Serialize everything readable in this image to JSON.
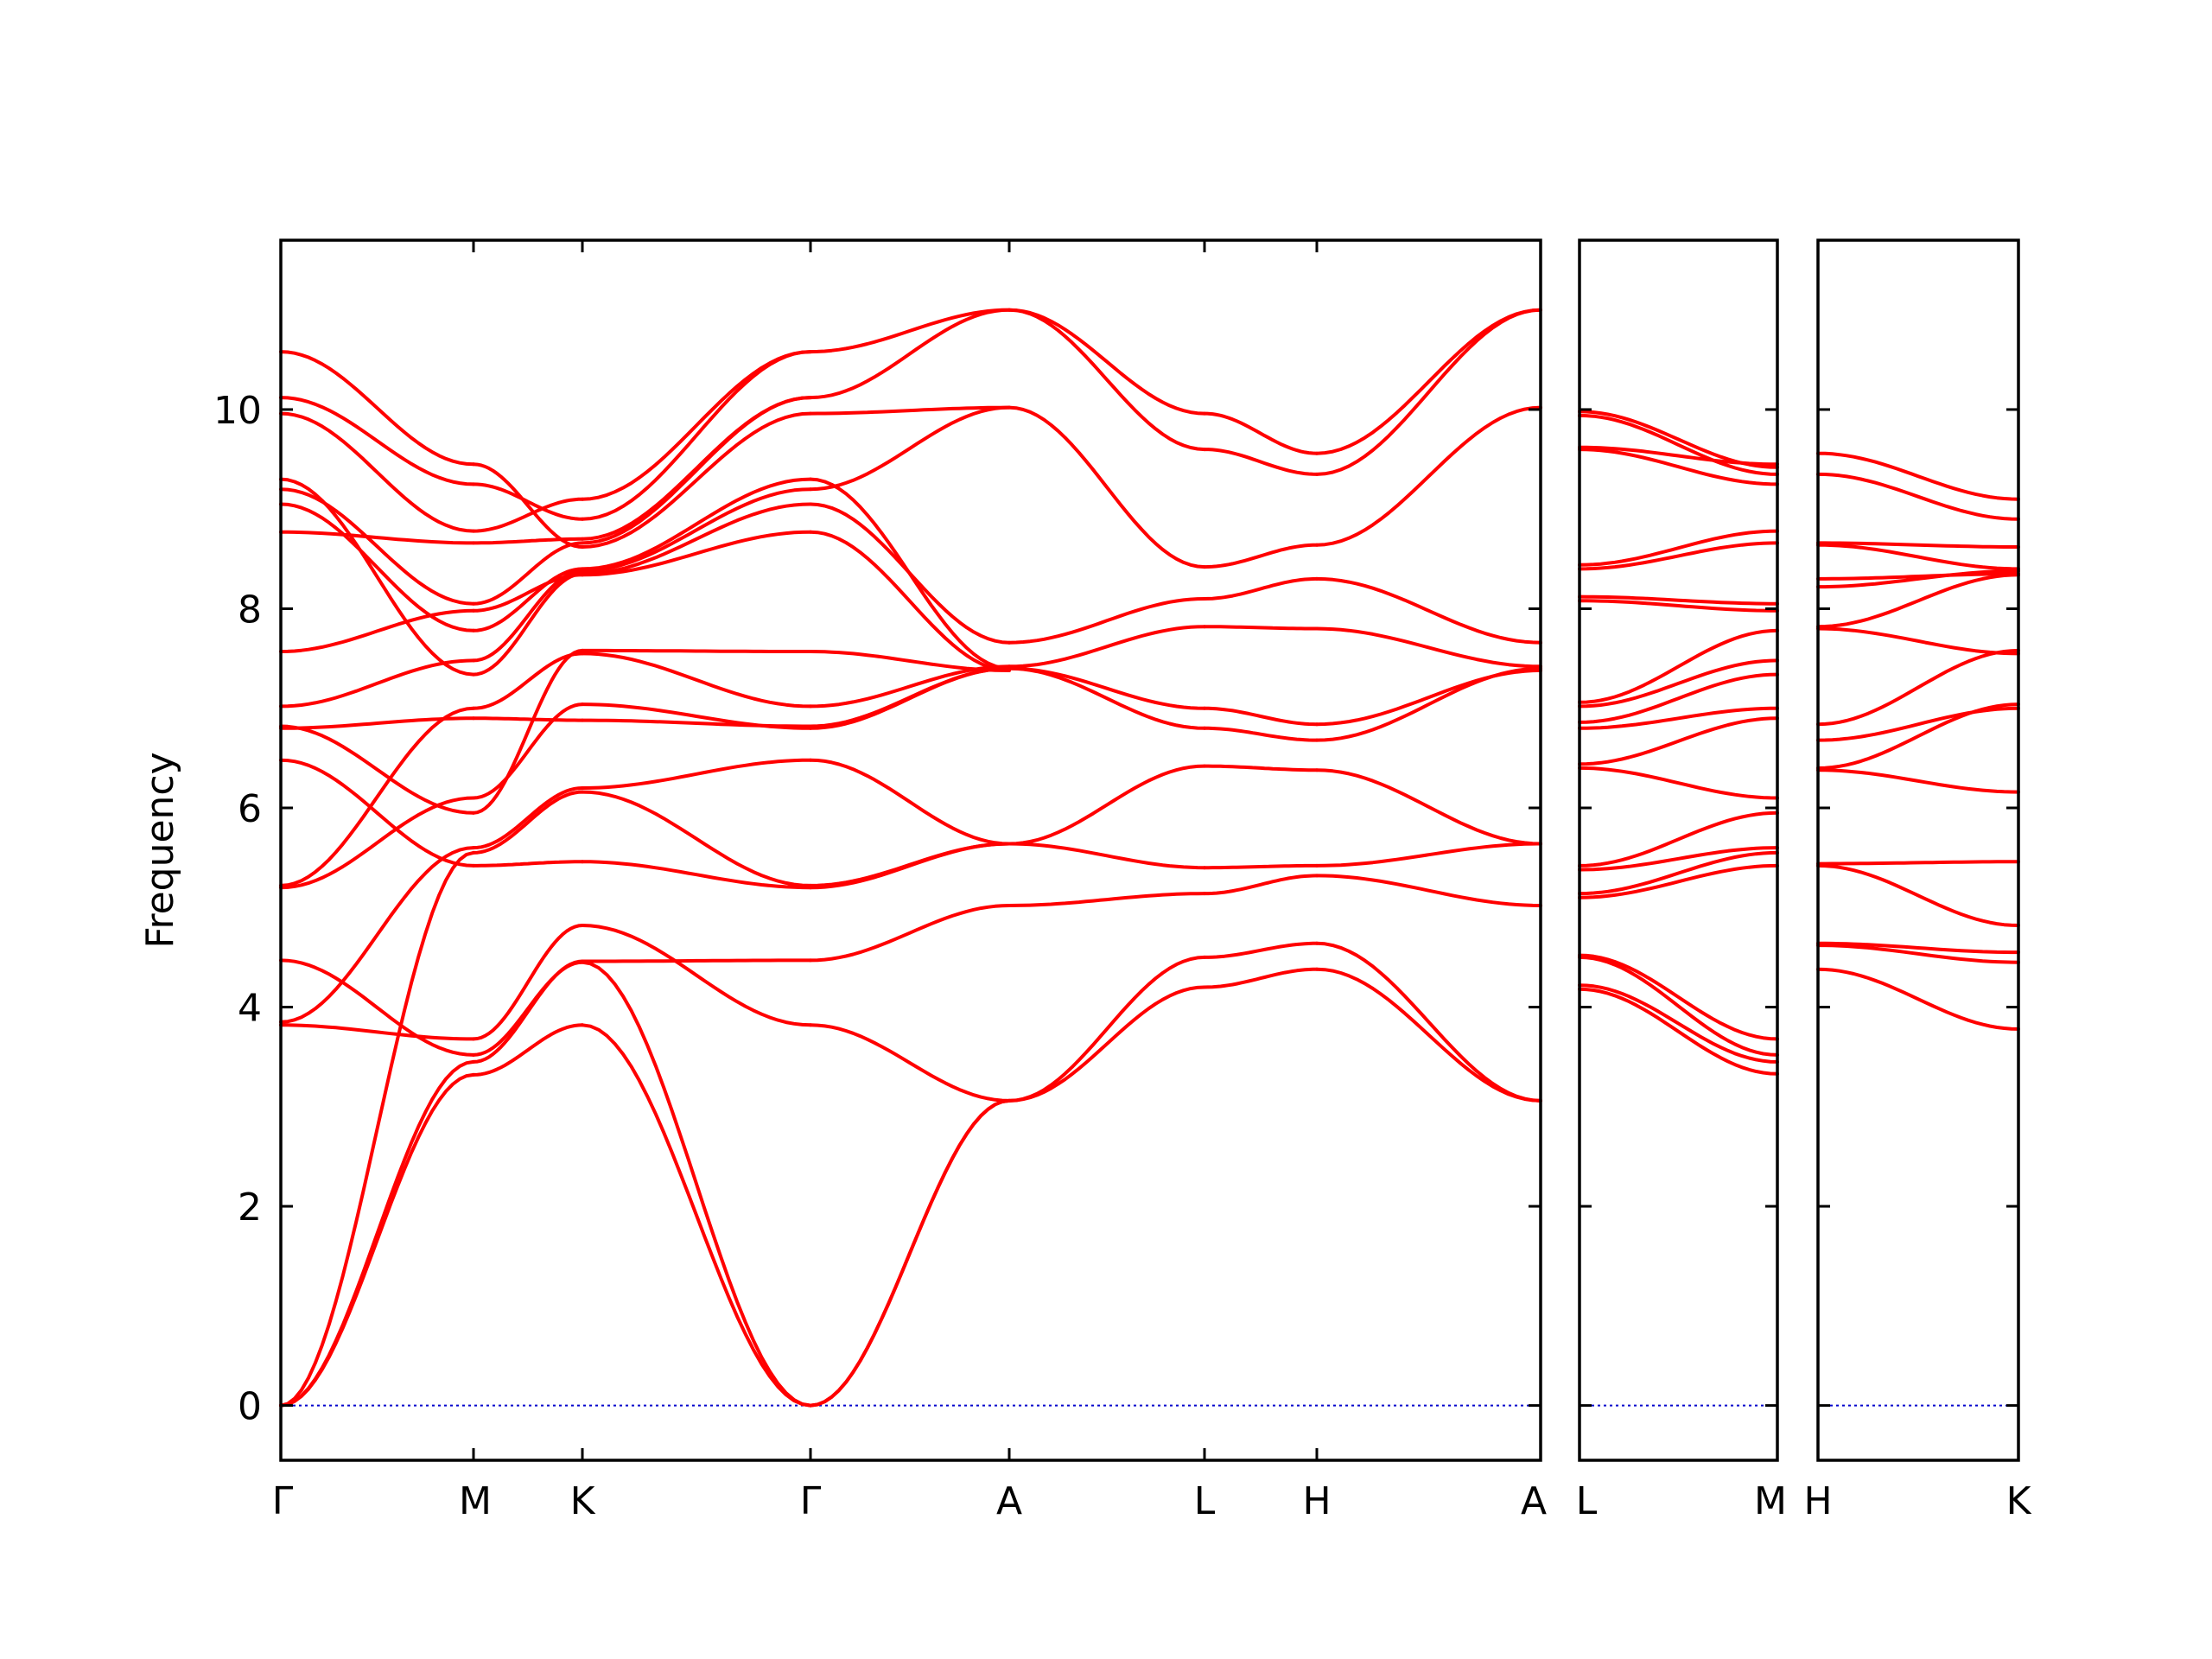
{
  "chart_data": {
    "type": "line",
    "title": "",
    "ylabel": "Frequency",
    "xlabel": "",
    "ylim": [
      -0.55,
      11.7
    ],
    "yticks": [
      0,
      2,
      4,
      6,
      8,
      10
    ],
    "grid": false,
    "colors": {
      "band": "#ff0000",
      "zero_line": "#0000cc",
      "frame": "#000000"
    },
    "panels": [
      {
        "labels": [
          "Γ",
          "M",
          "K",
          "Γ",
          "A",
          "L",
          "H",
          "A"
        ],
        "segments": [
          {
            "from": "Γ",
            "to": "M",
            "bands": [
              [
                0,
                3.32
              ],
              [
                0,
                3.45
              ],
              [
                0,
                5.55
              ],
              [
                3.82,
                3.68
              ],
              [
                3.85,
                5.6
              ],
              [
                4.47,
                3.52
              ],
              [
                5.2,
                6.1
              ],
              [
                5.22,
                7.0
              ],
              [
                6.48,
                5.42
              ],
              [
                6.8,
                6.9
              ],
              [
                6.82,
                5.95
              ],
              [
                7.02,
                7.48
              ],
              [
                7.57,
                7.98
              ],
              [
                8.77,
                8.66
              ],
              [
                9.05,
                7.78
              ],
              [
                9.2,
                8.05
              ],
              [
                9.3,
                7.34
              ],
              [
                9.96,
                8.78
              ],
              [
                10.12,
                9.25
              ],
              [
                10.58,
                9.45
              ]
            ]
          },
          {
            "from": "M",
            "to": "K",
            "bands": [
              [
                3.32,
                3.82
              ],
              [
                3.45,
                4.46
              ],
              [
                3.52,
                4.45
              ],
              [
                3.68,
                4.82
              ],
              [
                5.42,
                5.46
              ],
              [
                5.55,
                6.16
              ],
              [
                5.6,
                6.2
              ],
              [
                5.95,
                7.58
              ],
              [
                6.1,
                7.04
              ],
              [
                6.9,
                6.88
              ],
              [
                7.0,
                7.55
              ],
              [
                7.34,
                8.35
              ],
              [
                7.48,
                8.38
              ],
              [
                7.78,
                8.4
              ],
              [
                7.98,
                8.34
              ],
              [
                8.05,
                8.66
              ],
              [
                8.66,
                8.7
              ],
              [
                8.78,
                9.1
              ],
              [
                9.25,
                8.9
              ],
              [
                9.45,
                8.62
              ]
            ]
          },
          {
            "from": "K",
            "to": "Γ",
            "bands": [
              [
                3.82,
                0
              ],
              [
                4.45,
                0
              ],
              [
                4.46,
                4.47
              ],
              [
                4.82,
                3.82
              ],
              [
                5.46,
                5.2
              ],
              [
                6.16,
                5.22
              ],
              [
                6.2,
                6.48
              ],
              [
                7.04,
                6.8
              ],
              [
                6.88,
                6.82
              ],
              [
                7.55,
                7.02
              ],
              [
                7.58,
                7.57
              ],
              [
                8.34,
                8.77
              ],
              [
                8.35,
                9.05
              ],
              [
                8.38,
                9.2
              ],
              [
                8.4,
                9.3
              ],
              [
                8.62,
                9.96
              ],
              [
                8.66,
                10.12
              ],
              [
                8.7,
                10.12
              ],
              [
                8.9,
                10.58
              ],
              [
                9.1,
                10.58
              ]
            ]
          },
          {
            "from": "Γ",
            "to": "A",
            "bands": [
              [
                0,
                3.06
              ],
              [
                0,
                3.06
              ],
              [
                3.82,
                3.06
              ],
              [
                4.47,
                5.02
              ],
              [
                5.2,
                5.64
              ],
              [
                5.22,
                5.64
              ],
              [
                6.48,
                5.64
              ],
              [
                6.8,
                7.4
              ],
              [
                6.82,
                7.4
              ],
              [
                7.02,
                7.42
              ],
              [
                7.57,
                7.38
              ],
              [
                8.77,
                7.38
              ],
              [
                9.05,
                7.66
              ],
              [
                9.2,
                10.02
              ],
              [
                9.3,
                7.4
              ],
              [
                9.96,
                10.02
              ],
              [
                10.12,
                11.0
              ],
              [
                10.58,
                11.0
              ]
            ]
          },
          {
            "from": "A",
            "to": "L",
            "bands": [
              [
                3.06,
                4.2
              ],
              [
                3.06,
                4.5
              ],
              [
                5.02,
                5.14
              ],
              [
                5.64,
                5.4
              ],
              [
                5.64,
                6.42
              ],
              [
                7.4,
                6.8
              ],
              [
                7.4,
                7.0
              ],
              [
                7.42,
                7.82
              ],
              [
                7.66,
                8.1
              ],
              [
                10.02,
                8.42
              ],
              [
                11.0,
                9.6
              ],
              [
                11.0,
                9.96
              ]
            ]
          },
          {
            "from": "L",
            "to": "H",
            "bands": [
              [
                4.2,
                4.38
              ],
              [
                4.5,
                4.64
              ],
              [
                5.14,
                5.32
              ],
              [
                5.4,
                5.42
              ],
              [
                6.42,
                6.38
              ],
              [
                6.8,
                6.68
              ],
              [
                7.0,
                6.84
              ],
              [
                7.82,
                7.8
              ],
              [
                8.1,
                8.3
              ],
              [
                8.42,
                8.64
              ],
              [
                9.6,
                9.35
              ],
              [
                9.96,
                9.56
              ]
            ]
          },
          {
            "from": "H",
            "to": "A",
            "bands": [
              [
                4.38,
                3.06
              ],
              [
                4.64,
                3.06
              ],
              [
                5.32,
                5.02
              ],
              [
                5.42,
                5.64
              ],
              [
                6.38,
                5.64
              ],
              [
                6.68,
                7.4
              ],
              [
                6.84,
                7.38
              ],
              [
                7.8,
                7.42
              ],
              [
                8.3,
                7.66
              ],
              [
                8.64,
                10.02
              ],
              [
                9.35,
                11.0
              ],
              [
                9.56,
                11.0
              ]
            ]
          }
        ]
      },
      {
        "labels": [
          "L",
          "M"
        ],
        "segments": [
          {
            "from": "L",
            "to": "M",
            "bands": [
              [
                4.18,
                3.33
              ],
              [
                4.22,
                3.45
              ],
              [
                4.5,
                3.52
              ],
              [
                4.52,
                3.68
              ],
              [
                5.1,
                5.42
              ],
              [
                5.14,
                5.55
              ],
              [
                5.38,
                5.6
              ],
              [
                5.42,
                5.95
              ],
              [
                6.4,
                6.1
              ],
              [
                6.44,
                6.9
              ],
              [
                6.8,
                7.0
              ],
              [
                6.86,
                7.34
              ],
              [
                7.02,
                7.48
              ],
              [
                7.06,
                7.78
              ],
              [
                8.08,
                7.98
              ],
              [
                8.12,
                8.05
              ],
              [
                8.4,
                8.66
              ],
              [
                8.44,
                8.78
              ],
              [
                9.6,
                9.25
              ],
              [
                9.62,
                9.45
              ],
              [
                9.94,
                9.35
              ],
              [
                9.98,
                9.42
              ]
            ]
          }
        ]
      },
      {
        "labels": [
          "H",
          "K"
        ],
        "segments": [
          {
            "from": "H",
            "to": "K",
            "bands": [
              [
                4.38,
                3.78
              ],
              [
                4.62,
                4.45
              ],
              [
                4.64,
                4.55
              ],
              [
                5.42,
                4.82
              ],
              [
                5.44,
                5.46
              ],
              [
                6.38,
                6.16
              ],
              [
                6.4,
                7.04
              ],
              [
                6.68,
                7.0
              ],
              [
                6.84,
                7.58
              ],
              [
                7.8,
                7.55
              ],
              [
                7.82,
                8.34
              ],
              [
                8.3,
                8.35
              ],
              [
                8.22,
                8.38
              ],
              [
                8.64,
                8.4
              ],
              [
                8.66,
                8.62
              ],
              [
                9.35,
                8.9
              ],
              [
                9.56,
                9.1
              ]
            ]
          }
        ]
      }
    ]
  }
}
